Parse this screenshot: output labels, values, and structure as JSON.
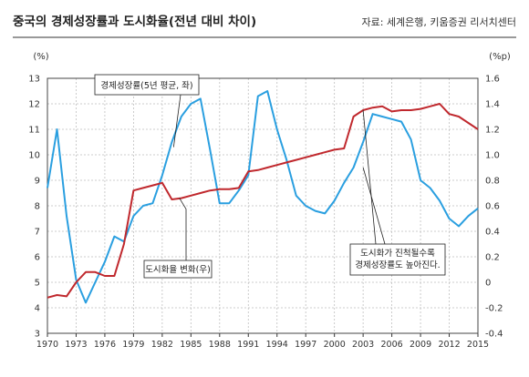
{
  "header": {
    "title": "중국의 경제성장률과 도시화율(전년 대비 차이)",
    "source": "자료: 세계은행, 키움증권 리서치센터"
  },
  "chart_data": {
    "type": "line",
    "title": "중국의 경제성장률과 도시화율(전년 대비 차이)",
    "left_unit": "(%)",
    "right_unit": "(%p)",
    "left_axis": {
      "min": 3,
      "max": 13,
      "ticks": [
        3,
        4,
        5,
        6,
        7,
        8,
        9,
        10,
        11,
        12,
        13
      ]
    },
    "right_axis": {
      "min": -0.4,
      "max": 1.6,
      "ticks": [
        "-0.4",
        "-0.2",
        "0",
        "0.2",
        "0.4",
        "0.6",
        "0.8",
        "1.0",
        "1.2",
        "1.4",
        "1.6"
      ]
    },
    "x_range": [
      1970,
      2015
    ],
    "x_ticks": [
      1970,
      1973,
      1976,
      1979,
      1982,
      1985,
      1988,
      1991,
      1994,
      1997,
      2000,
      2003,
      2006,
      2009,
      2012,
      2015
    ],
    "grid": true,
    "series": [
      {
        "key": "gdp",
        "axis": "left",
        "color": "#2a9fe0",
        "points": [
          [
            1970,
            8.7
          ],
          [
            1971,
            11.0
          ],
          [
            1972,
            7.6
          ],
          [
            1973,
            5.1
          ],
          [
            1974,
            4.2
          ],
          [
            1975,
            5.0
          ],
          [
            1976,
            5.8
          ],
          [
            1977,
            6.8
          ],
          [
            1978,
            6.6
          ],
          [
            1979,
            7.6
          ],
          [
            1980,
            8.0
          ],
          [
            1981,
            8.1
          ],
          [
            1982,
            9.2
          ],
          [
            1983,
            10.5
          ],
          [
            1984,
            11.5
          ],
          [
            1985,
            12.0
          ],
          [
            1986,
            12.2
          ],
          [
            1987,
            10.2
          ],
          [
            1988,
            8.1
          ],
          [
            1989,
            8.1
          ],
          [
            1990,
            8.6
          ],
          [
            1991,
            9.2
          ],
          [
            1992,
            12.3
          ],
          [
            1993,
            12.5
          ],
          [
            1994,
            11.0
          ],
          [
            1995,
            9.8
          ],
          [
            1996,
            8.4
          ],
          [
            1997,
            8.0
          ],
          [
            1998,
            7.8
          ],
          [
            1999,
            7.7
          ],
          [
            2000,
            8.2
          ],
          [
            2001,
            8.9
          ],
          [
            2002,
            9.5
          ],
          [
            2003,
            10.5
          ],
          [
            2004,
            11.6
          ],
          [
            2005,
            11.5
          ],
          [
            2006,
            11.4
          ],
          [
            2007,
            11.3
          ],
          [
            2008,
            10.6
          ],
          [
            2009,
            9.0
          ],
          [
            2010,
            8.7
          ],
          [
            2011,
            8.2
          ],
          [
            2012,
            7.5
          ],
          [
            2013,
            7.2
          ],
          [
            2014,
            7.6
          ],
          [
            2015,
            7.9
          ]
        ]
      },
      {
        "key": "urban",
        "axis": "right",
        "color": "#c0282d",
        "points": [
          [
            1970,
            -0.12
          ],
          [
            1971,
            -0.1
          ],
          [
            1972,
            -0.11
          ],
          [
            1973,
            0.0
          ],
          [
            1974,
            0.08
          ],
          [
            1975,
            0.08
          ],
          [
            1976,
            0.05
          ],
          [
            1977,
            0.05
          ],
          [
            1978,
            0.3
          ],
          [
            1979,
            0.72
          ],
          [
            1980,
            0.74
          ],
          [
            1981,
            0.76
          ],
          [
            1982,
            0.78
          ],
          [
            1983,
            0.65
          ],
          [
            1984,
            0.66
          ],
          [
            1985,
            0.68
          ],
          [
            1986,
            0.7
          ],
          [
            1987,
            0.72
          ],
          [
            1988,
            0.73
          ],
          [
            1989,
            0.73
          ],
          [
            1990,
            0.74
          ],
          [
            1991,
            0.87
          ],
          [
            1992,
            0.88
          ],
          [
            1993,
            0.9
          ],
          [
            1994,
            0.92
          ],
          [
            1995,
            0.94
          ],
          [
            1996,
            0.96
          ],
          [
            1997,
            0.98
          ],
          [
            1998,
            1.0
          ],
          [
            1999,
            1.02
          ],
          [
            2000,
            1.04
          ],
          [
            2001,
            1.05
          ],
          [
            2002,
            1.3
          ],
          [
            2003,
            1.35
          ],
          [
            2004,
            1.37
          ],
          [
            2005,
            1.38
          ],
          [
            2006,
            1.34
          ],
          [
            2007,
            1.35
          ],
          [
            2008,
            1.35
          ],
          [
            2009,
            1.36
          ],
          [
            2010,
            1.38
          ],
          [
            2011,
            1.4
          ],
          [
            2012,
            1.32
          ],
          [
            2013,
            1.3
          ],
          [
            2014,
            1.25
          ],
          [
            2015,
            1.2
          ]
        ]
      }
    ],
    "annotations": [
      {
        "key": "gdp_label",
        "text": "경제성장률(5년 평균, 좌)"
      },
      {
        "key": "urban_label",
        "text": "도시화율 변화(우)"
      },
      {
        "key": "note",
        "lines": [
          "도시화가 진척될수록",
          "경제성장률도 높아진다."
        ]
      }
    ]
  }
}
